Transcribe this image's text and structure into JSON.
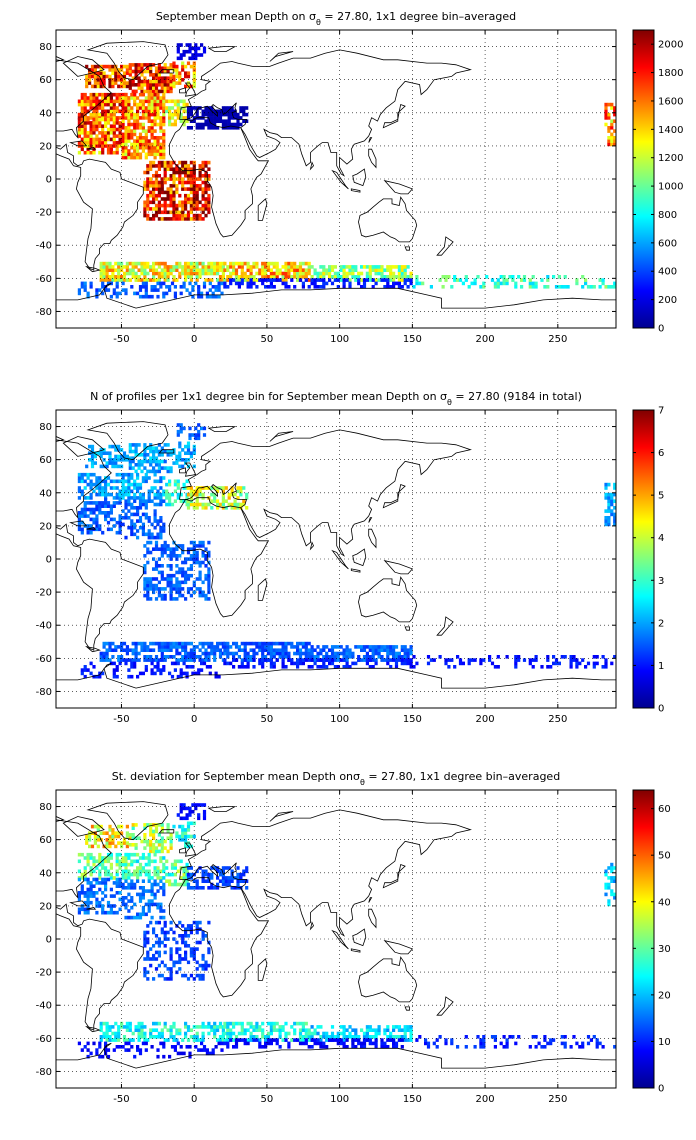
{
  "figure": {
    "background": "#ffffff",
    "land_outline_color": "#000000",
    "grid_style": "dotted",
    "colormap": "jet"
  },
  "chart_data": [
    {
      "type": "heatmap",
      "title": "September mean Depth on σθ = 27.80, 1x1 degree bin–averaged",
      "title_parts": [
        "September mean Depth on σ",
        "θ",
        " = 27.80, 1x1 degree bin–averaged"
      ],
      "xlabel": "",
      "ylabel": "",
      "xlim": [
        -95,
        290
      ],
      "ylim": [
        -90,
        90
      ],
      "xticks": [
        -50,
        0,
        50,
        100,
        150,
        200,
        250
      ],
      "yticks": [
        -80,
        -60,
        -40,
        -20,
        0,
        20,
        40,
        60,
        80
      ],
      "grid": true,
      "colorbar": {
        "ticks": [
          0,
          200,
          400,
          600,
          800,
          1000,
          1200,
          1400,
          1600,
          1800,
          2000
        ],
        "range": [
          0,
          2100
        ]
      },
      "regions": [
        {
          "lon": [
            -75,
            -45
          ],
          "lat": [
            55,
            68
          ],
          "value": 1750,
          "density": 0.85
        },
        {
          "lon": [
            -45,
            -15
          ],
          "lat": [
            52,
            70
          ],
          "value": 1780,
          "density": 0.8
        },
        {
          "lon": [
            -15,
            0
          ],
          "lat": [
            55,
            70
          ],
          "value": 1600,
          "density": 0.6
        },
        {
          "lon": [
            -12,
            8
          ],
          "lat": [
            72,
            82
          ],
          "value": 200,
          "density": 0.5
        },
        {
          "lon": [
            -80,
            -45
          ],
          "lat": [
            36,
            52
          ],
          "value": 1680,
          "density": 0.85
        },
        {
          "lon": [
            -50,
            -20
          ],
          "lat": [
            36,
            52
          ],
          "value": 1550,
          "density": 0.8
        },
        {
          "lon": [
            -20,
            -5
          ],
          "lat": [
            32,
            48
          ],
          "value": 1200,
          "density": 0.7
        },
        {
          "lon": [
            -5,
            36
          ],
          "lat": [
            30,
            44
          ],
          "value": 100,
          "density": 0.75
        },
        {
          "lon": [
            -80,
            -50
          ],
          "lat": [
            15,
            36
          ],
          "value": 1650,
          "density": 0.8
        },
        {
          "lon": [
            -50,
            -20
          ],
          "lat": [
            12,
            36
          ],
          "value": 1550,
          "density": 0.8
        },
        {
          "lon": [
            -35,
            10
          ],
          "lat": [
            -25,
            10
          ],
          "value": 1850,
          "density": 0.75
        },
        {
          "lon": [
            -65,
            20
          ],
          "lat": [
            -62,
            -50
          ],
          "value": 1300,
          "density": 0.8
        },
        {
          "lon": [
            20,
            80
          ],
          "lat": [
            -62,
            -50
          ],
          "value": 1400,
          "density": 0.8
        },
        {
          "lon": [
            80,
            150
          ],
          "lat": [
            -62,
            -52
          ],
          "value": 1100,
          "density": 0.8
        },
        {
          "lon": [
            150,
            290
          ],
          "lat": [
            -66,
            -58
          ],
          "value": 900,
          "density": 0.35
        },
        {
          "lon": [
            -80,
            20
          ],
          "lat": [
            -72,
            -62
          ],
          "value": 450,
          "density": 0.4
        },
        {
          "lon": [
            20,
            150
          ],
          "lat": [
            -66,
            -61
          ],
          "value": 300,
          "density": 0.5
        },
        {
          "lon": [
            282,
            290
          ],
          "lat": [
            20,
            45
          ],
          "value": 1500,
          "density": 0.7
        }
      ]
    },
    {
      "type": "heatmap",
      "title": "N of profiles per 1x1 degree bin for September mean Depth on σθ = 27.80 (9184 in total)",
      "title_parts": [
        "N of profiles per 1x1 degree bin for September mean Depth on σ",
        "θ",
        " = 27.80 (9184 in total)"
      ],
      "xlabel": "",
      "ylabel": "",
      "xlim": [
        -95,
        290
      ],
      "ylim": [
        -90,
        90
      ],
      "xticks": [
        -50,
        0,
        50,
        100,
        150,
        200,
        250
      ],
      "yticks": [
        -80,
        -60,
        -40,
        -20,
        0,
        20,
        40,
        60,
        80
      ],
      "grid": true,
      "colorbar": {
        "ticks": [
          0,
          1,
          2,
          3,
          4,
          5,
          6,
          7
        ],
        "range": [
          0,
          7
        ]
      },
      "regions": [
        {
          "lon": [
            -75,
            -45
          ],
          "lat": [
            55,
            68
          ],
          "value": 2,
          "density": 0.6
        },
        {
          "lon": [
            -45,
            -15
          ],
          "lat": [
            52,
            70
          ],
          "value": 2,
          "density": 0.6
        },
        {
          "lon": [
            -15,
            0
          ],
          "lat": [
            55,
            70
          ],
          "value": 2,
          "density": 0.45
        },
        {
          "lon": [
            -12,
            8
          ],
          "lat": [
            72,
            82
          ],
          "value": 1.5,
          "density": 0.4
        },
        {
          "lon": [
            -80,
            -45
          ],
          "lat": [
            36,
            52
          ],
          "value": 2,
          "density": 0.6
        },
        {
          "lon": [
            -50,
            -20
          ],
          "lat": [
            36,
            52
          ],
          "value": 2,
          "density": 0.55
        },
        {
          "lon": [
            -20,
            -5
          ],
          "lat": [
            32,
            48
          ],
          "value": 3,
          "density": 0.6
        },
        {
          "lon": [
            -5,
            36
          ],
          "lat": [
            30,
            44
          ],
          "value": 4,
          "density": 0.6
        },
        {
          "lon": [
            -80,
            -50
          ],
          "lat": [
            15,
            36
          ],
          "value": 1.5,
          "density": 0.55
        },
        {
          "lon": [
            -50,
            -20
          ],
          "lat": [
            12,
            36
          ],
          "value": 1.5,
          "density": 0.55
        },
        {
          "lon": [
            -35,
            10
          ],
          "lat": [
            -25,
            10
          ],
          "value": 1.5,
          "density": 0.5
        },
        {
          "lon": [
            -65,
            20
          ],
          "lat": [
            -62,
            -50
          ],
          "value": 1.5,
          "density": 0.7
        },
        {
          "lon": [
            20,
            80
          ],
          "lat": [
            -62,
            -50
          ],
          "value": 1.5,
          "density": 0.7
        },
        {
          "lon": [
            80,
            150
          ],
          "lat": [
            -62,
            -52
          ],
          "value": 1.5,
          "density": 0.7
        },
        {
          "lon": [
            150,
            290
          ],
          "lat": [
            -66,
            -58
          ],
          "value": 1,
          "density": 0.3
        },
        {
          "lon": [
            -80,
            20
          ],
          "lat": [
            -72,
            -62
          ],
          "value": 1,
          "density": 0.35
        },
        {
          "lon": [
            20,
            150
          ],
          "lat": [
            -66,
            -61
          ],
          "value": 1,
          "density": 0.45
        },
        {
          "lon": [
            282,
            290
          ],
          "lat": [
            20,
            45
          ],
          "value": 2,
          "density": 0.6
        }
      ]
    },
    {
      "type": "heatmap",
      "title": "St. deviation for September mean Depth onσθ = 27.80, 1x1 degree bin–averaged",
      "title_parts": [
        "St. deviation for September mean Depth onσ",
        "θ",
        " = 27.80, 1x1 degree bin–averaged"
      ],
      "xlabel": "",
      "ylabel": "",
      "xlim": [
        -95,
        290
      ],
      "ylim": [
        -90,
        90
      ],
      "xticks": [
        -50,
        0,
        50,
        100,
        150,
        200,
        250
      ],
      "yticks": [
        -80,
        -60,
        -40,
        -20,
        0,
        20,
        40,
        60,
        80
      ],
      "grid": true,
      "colorbar": {
        "ticks": [
          0,
          10,
          20,
          30,
          40,
          50,
          60
        ],
        "range": [
          0,
          64
        ]
      },
      "regions": [
        {
          "lon": [
            -75,
            -45
          ],
          "lat": [
            55,
            68
          ],
          "value": 40,
          "density": 0.55
        },
        {
          "lon": [
            -45,
            -15
          ],
          "lat": [
            52,
            70
          ],
          "value": 35,
          "density": 0.5
        },
        {
          "lon": [
            -15,
            0
          ],
          "lat": [
            55,
            70
          ],
          "value": 25,
          "density": 0.4
        },
        {
          "lon": [
            -12,
            8
          ],
          "lat": [
            72,
            82
          ],
          "value": 8,
          "density": 0.4
        },
        {
          "lon": [
            -80,
            -45
          ],
          "lat": [
            36,
            52
          ],
          "value": 30,
          "density": 0.55
        },
        {
          "lon": [
            -50,
            -20
          ],
          "lat": [
            36,
            52
          ],
          "value": 28,
          "density": 0.5
        },
        {
          "lon": [
            -20,
            -5
          ],
          "lat": [
            32,
            48
          ],
          "value": 30,
          "density": 0.5
        },
        {
          "lon": [
            -5,
            36
          ],
          "lat": [
            30,
            44
          ],
          "value": 12,
          "density": 0.55
        },
        {
          "lon": [
            -80,
            -50
          ],
          "lat": [
            15,
            36
          ],
          "value": 15,
          "density": 0.5
        },
        {
          "lon": [
            -50,
            -20
          ],
          "lat": [
            12,
            36
          ],
          "value": 15,
          "density": 0.5
        },
        {
          "lon": [
            -35,
            10
          ],
          "lat": [
            -25,
            10
          ],
          "value": 12,
          "density": 0.4
        },
        {
          "lon": [
            -65,
            20
          ],
          "lat": [
            -62,
            -50
          ],
          "value": 25,
          "density": 0.6
        },
        {
          "lon": [
            20,
            80
          ],
          "lat": [
            -62,
            -50
          ],
          "value": 25,
          "density": 0.6
        },
        {
          "lon": [
            80,
            150
          ],
          "lat": [
            -62,
            -52
          ],
          "value": 22,
          "density": 0.6
        },
        {
          "lon": [
            150,
            290
          ],
          "lat": [
            -66,
            -58
          ],
          "value": 10,
          "density": 0.25
        },
        {
          "lon": [
            -80,
            20
          ],
          "lat": [
            -72,
            -62
          ],
          "value": 8,
          "density": 0.3
        },
        {
          "lon": [
            20,
            150
          ],
          "lat": [
            -66,
            -61
          ],
          "value": 8,
          "density": 0.4
        },
        {
          "lon": [
            282,
            290
          ],
          "lat": [
            20,
            45
          ],
          "value": 20,
          "density": 0.5
        }
      ]
    }
  ]
}
